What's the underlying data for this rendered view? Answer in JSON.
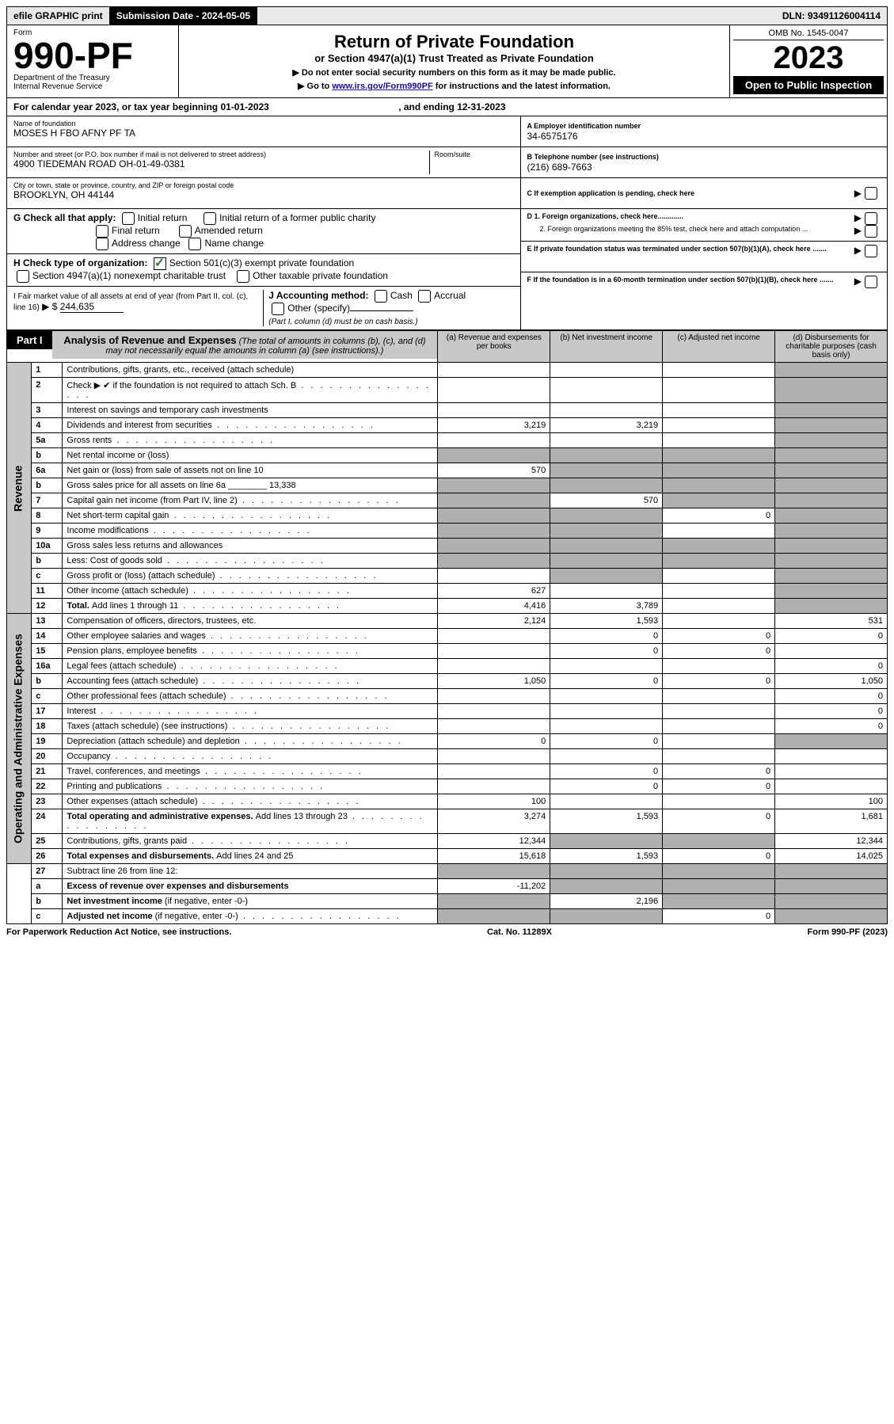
{
  "topbar": {
    "efile": "efile GRAPHIC print",
    "submission": "Submission Date - 2024-05-05",
    "dln": "DLN: 93491126004114"
  },
  "header": {
    "form_label": "Form",
    "form_number": "990-PF",
    "dept": "Department of the Treasury",
    "irs": "Internal Revenue Service",
    "title": "Return of Private Foundation",
    "subtitle": "or Section 4947(a)(1) Trust Treated as Private Foundation",
    "instr1": "▶ Do not enter social security numbers on this form as it may be made public.",
    "instr2_pre": "▶ Go to ",
    "instr2_link": "www.irs.gov/Form990PF",
    "instr2_post": " for instructions and the latest information.",
    "omb": "OMB No. 1545-0047",
    "year": "2023",
    "open": "Open to Public Inspection"
  },
  "cal": {
    "text_pre": "For calendar year 2023, or tax year beginning ",
    "begin": "01-01-2023",
    "mid": " , and ending ",
    "end": "12-31-2023"
  },
  "info": {
    "name_label": "Name of foundation",
    "name": "MOSES H FBO AFNY PF TA",
    "addr_label": "Number and street (or P.O. box number if mail is not delivered to street address)",
    "addr": "4900 TIEDEMAN ROAD OH-01-49-0381",
    "room_label": "Room/suite",
    "city_label": "City or town, state or province, country, and ZIP or foreign postal code",
    "city": "BROOKLYN, OH  44144",
    "a_label": "A Employer identification number",
    "a_val": "34-6575176",
    "b_label": "B Telephone number (see instructions)",
    "b_val": "(216) 689-7663",
    "c_label": "C If exemption application is pending, check here",
    "d1": "D 1. Foreign organizations, check here.............",
    "d2": "2. Foreign organizations meeting the 85% test, check here and attach computation ...",
    "e": "E  If private foundation status was terminated under section 507(b)(1)(A), check here .......",
    "f": "F  If the foundation is in a 60-month termination under section 507(b)(1)(B), check here ......."
  },
  "g": {
    "label": "G Check all that apply:",
    "initial": "Initial return",
    "final": "Final return",
    "addr": "Address change",
    "initial_former": "Initial return of a former public charity",
    "amended": "Amended return",
    "name": "Name change"
  },
  "h": {
    "label": "H Check type of organization:",
    "opt1": "Section 501(c)(3) exempt private foundation",
    "opt2": "Section 4947(a)(1) nonexempt charitable trust",
    "opt3": "Other taxable private foundation"
  },
  "i": {
    "label": "I Fair market value of all assets at end of year (from Part II, col. (c), line 16)",
    "arrow": "▶ $",
    "val": "244,635"
  },
  "j": {
    "label": "J Accounting method:",
    "cash": "Cash",
    "accrual": "Accrual",
    "other": "Other (specify)",
    "note": "(Part I, column (d) must be on cash basis.)"
  },
  "part1": {
    "label": "Part I",
    "title": "Analysis of Revenue and Expenses",
    "title_note": " (The total of amounts in columns (b), (c), and (d) may not necessarily equal the amounts in column (a) (see instructions).)",
    "col_a": "(a)   Revenue and expenses per books",
    "col_b": "(b)   Net investment income",
    "col_c": "(c)   Adjusted net income",
    "col_d": "(d)   Disbursements for charitable purposes (cash basis only)"
  },
  "side": {
    "revenue": "Revenue",
    "expenses": "Operating and Administrative Expenses"
  },
  "rows": [
    {
      "n": "1",
      "d": "Contributions, gifts, grants, etc., received (attach schedule)",
      "a": "",
      "b": "",
      "c": "",
      "ds": "s",
      "dv": ""
    },
    {
      "n": "2",
      "d": "Check ▶ ✔ if the foundation is not required to attach Sch. B",
      "dots": true,
      "a": "",
      "b": "",
      "c": "",
      "ds": "s"
    },
    {
      "n": "3",
      "d": "Interest on savings and temporary cash investments",
      "a": "",
      "b": "",
      "c": "",
      "ds": "s"
    },
    {
      "n": "4",
      "d": "Dividends and interest from securities",
      "dots": true,
      "a": "3,219",
      "b": "3,219",
      "c": "",
      "ds": "s"
    },
    {
      "n": "5a",
      "d": "Gross rents",
      "dots": true,
      "a": "",
      "b": "",
      "c": "",
      "ds": "s"
    },
    {
      "n": "b",
      "d": "Net rental income or (loss)",
      "underline": true,
      "as": "s",
      "bs": "s",
      "cs": "s",
      "ds": "s"
    },
    {
      "n": "6a",
      "d": "Net gain or (loss) from sale of assets not on line 10",
      "a": "570",
      "bs": "s",
      "cs": "s",
      "ds": "s"
    },
    {
      "n": "b",
      "d": "Gross sales price for all assets on line 6a ________ 13,338",
      "as": "s",
      "bs": "s",
      "cs": "s",
      "ds": "s"
    },
    {
      "n": "7",
      "d": "Capital gain net income (from Part IV, line 2)",
      "dots": true,
      "as": "s",
      "b": "570",
      "cs": "s",
      "ds": "s"
    },
    {
      "n": "8",
      "d": "Net short-term capital gain",
      "dots": true,
      "as": "s",
      "bs": "s",
      "c": "0",
      "ds": "s"
    },
    {
      "n": "9",
      "d": "Income modifications",
      "dots": true,
      "as": "s",
      "bs": "s",
      "c": "",
      "ds": "s"
    },
    {
      "n": "10a",
      "d": "Gross sales less returns and allowances",
      "box": true,
      "as": "s",
      "bs": "s",
      "cs": "s",
      "ds": "s"
    },
    {
      "n": "b",
      "d": "Less: Cost of goods sold",
      "dots": true,
      "box": true,
      "as": "s",
      "bs": "s",
      "cs": "s",
      "ds": "s"
    },
    {
      "n": "c",
      "d": "Gross profit or (loss) (attach schedule)",
      "dots": true,
      "a": "",
      "bs": "s",
      "c": "",
      "ds": "s"
    },
    {
      "n": "11",
      "d": "Other income (attach schedule)",
      "dots": true,
      "a": "627",
      "b": "",
      "c": "",
      "ds": "s"
    },
    {
      "n": "12",
      "d_bold": "Total. ",
      "d": "Add lines 1 through 11",
      "dots": true,
      "a": "4,416",
      "b": "3,789",
      "c": "",
      "ds": "s"
    }
  ],
  "exp_rows": [
    {
      "n": "13",
      "d": "Compensation of officers, directors, trustees, etc.",
      "a": "2,124",
      "b": "1,593",
      "c": "",
      "dv": "531"
    },
    {
      "n": "14",
      "d": "Other employee salaries and wages",
      "dots": true,
      "a": "",
      "b": "0",
      "c": "0",
      "dv": "0"
    },
    {
      "n": "15",
      "d": "Pension plans, employee benefits",
      "dots": true,
      "a": "",
      "b": "0",
      "c": "0",
      "dv": ""
    },
    {
      "n": "16a",
      "d": "Legal fees (attach schedule)",
      "dots": true,
      "a": "",
      "b": "",
      "c": "",
      "dv": "0"
    },
    {
      "n": "b",
      "d": "Accounting fees (attach schedule)",
      "dots": true,
      "a": "1,050",
      "b": "0",
      "c": "0",
      "dv": "1,050"
    },
    {
      "n": "c",
      "d": "Other professional fees (attach schedule)",
      "dots": true,
      "a": "",
      "b": "",
      "c": "",
      "dv": "0"
    },
    {
      "n": "17",
      "d": "Interest",
      "dots": true,
      "a": "",
      "b": "",
      "c": "",
      "dv": "0"
    },
    {
      "n": "18",
      "d": "Taxes (attach schedule) (see instructions)",
      "dots": true,
      "a": "",
      "b": "",
      "c": "",
      "dv": "0"
    },
    {
      "n": "19",
      "d": "Depreciation (attach schedule) and depletion",
      "dots": true,
      "a": "0",
      "b": "0",
      "c": "",
      "ds": "s"
    },
    {
      "n": "20",
      "d": "Occupancy",
      "dots": true,
      "a": "",
      "b": "",
      "c": "",
      "dv": ""
    },
    {
      "n": "21",
      "d": "Travel, conferences, and meetings",
      "dots": true,
      "a": "",
      "b": "0",
      "c": "0",
      "dv": ""
    },
    {
      "n": "22",
      "d": "Printing and publications",
      "dots": true,
      "a": "",
      "b": "0",
      "c": "0",
      "dv": ""
    },
    {
      "n": "23",
      "d": "Other expenses (attach schedule)",
      "dots": true,
      "a": "100",
      "b": "",
      "c": "",
      "dv": "100"
    },
    {
      "n": "24",
      "d_bold": "Total operating and administrative expenses. ",
      "d": "Add lines 13 through 23",
      "dots": true,
      "a": "3,274",
      "b": "1,593",
      "c": "0",
      "dv": "1,681"
    },
    {
      "n": "25",
      "d": "Contributions, gifts, grants paid",
      "dots": true,
      "a": "12,344",
      "bs": "s",
      "cs": "s",
      "dv": "12,344"
    },
    {
      "n": "26",
      "d_bold": "Total expenses and disbursements. ",
      "d": "Add lines 24 and 25",
      "a": "15,618",
      "b": "1,593",
      "c": "0",
      "dv": "14,025"
    }
  ],
  "bottom_rows": [
    {
      "n": "27",
      "d": "Subtract line 26 from line 12:",
      "as": "s",
      "bs": "s",
      "cs": "s",
      "ds": "s"
    },
    {
      "n": "a",
      "d_bold": "Excess of revenue over expenses and disbursements",
      "a": "-11,202",
      "bs": "s",
      "cs": "s",
      "ds": "s"
    },
    {
      "n": "b",
      "d_bold": "Net investment income ",
      "d": "(if negative, enter -0-)",
      "as": "s",
      "b": "2,196",
      "cs": "s",
      "ds": "s"
    },
    {
      "n": "c",
      "d_bold": "Adjusted net income ",
      "d": "(if negative, enter -0-)",
      "dots": true,
      "as": "s",
      "bs": "s",
      "c": "0",
      "ds": "s"
    }
  ],
  "footer": {
    "left": "For Paperwork Reduction Act Notice, see instructions.",
    "mid": "Cat. No. 11289X",
    "right": "Form 990-PF (2023)"
  }
}
